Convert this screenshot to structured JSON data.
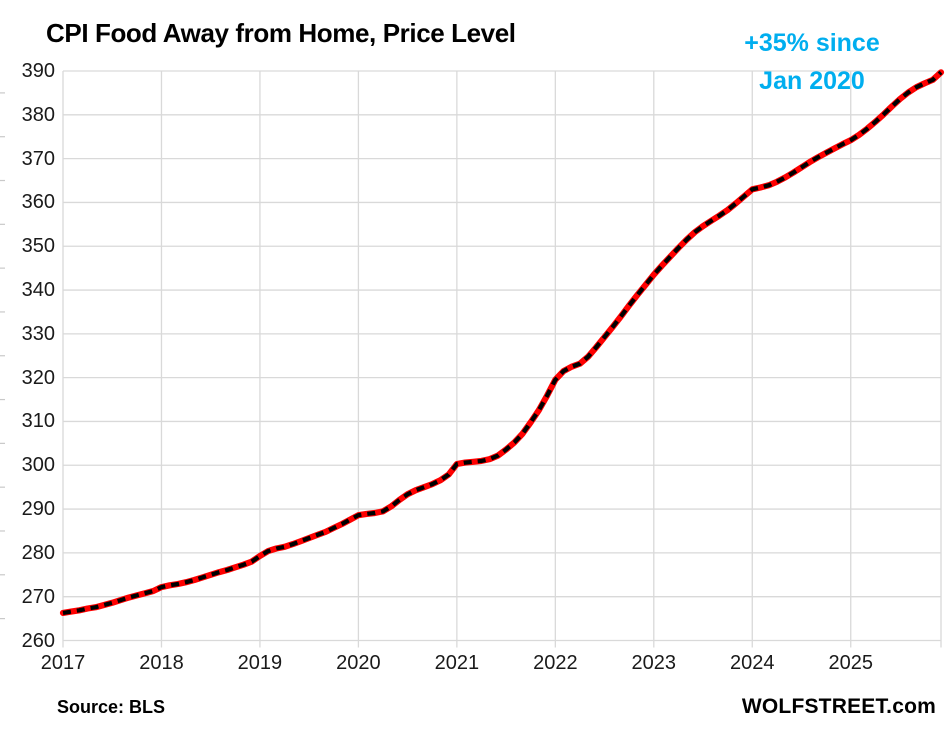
{
  "header": {
    "title": "CPI Food Away from Home, Price Level"
  },
  "annotation": {
    "line1": "+35% since",
    "line2": "Jan 2020",
    "color": "#00aeef"
  },
  "footer": {
    "source": "Source: BLS",
    "brand": "WOLFSTREET.com"
  },
  "colors": {
    "line_red": "#fe0000",
    "dash_black": "#000000",
    "grid": "#d9d9d9",
    "tick": "#c9c9c9",
    "axis_text": "#1a1a1a",
    "annotation_cyan": "#00aeef"
  },
  "chart_data": {
    "type": "line",
    "title": "CPI Food Away from Home, Price Level",
    "xlabel": "",
    "ylabel": "",
    "ylim": [
      260,
      390
    ],
    "ytick_step": 10,
    "grid": true,
    "legend_position": "none",
    "annotation": "+35% since Jan 2020",
    "x_tick_labels": [
      "2017",
      "2018",
      "2019",
      "2020",
      "2021",
      "2022",
      "2023",
      "2024",
      "2025"
    ],
    "y_tick_labels": [
      "390",
      "380",
      "370",
      "360",
      "350",
      "340",
      "330",
      "320",
      "310",
      "300",
      "290",
      "280",
      "270",
      "260"
    ],
    "series": [
      {
        "name": "CPI Food Away from Home price level index",
        "frequency": "monthly",
        "start": "2017-01",
        "end": "2025-12",
        "values": [
          266.3,
          266.6,
          266.9,
          267.3,
          267.6,
          268.1,
          268.6,
          269.2,
          269.8,
          270.3,
          270.8,
          271.3,
          272.2,
          272.6,
          272.9,
          273.3,
          273.8,
          274.4,
          275.0,
          275.6,
          276.1,
          276.7,
          277.3,
          278.0,
          279.3,
          280.4,
          281.0,
          281.4,
          282.0,
          282.7,
          283.4,
          284.1,
          284.8,
          285.7,
          286.6,
          287.6,
          288.6,
          288.9,
          289.1,
          289.5,
          290.6,
          292.1,
          293.4,
          294.3,
          295.0,
          295.7,
          296.6,
          297.9,
          300.3,
          300.6,
          300.8,
          301.0,
          301.4,
          302.2,
          303.6,
          305.2,
          307.2,
          309.8,
          312.6,
          315.9,
          319.5,
          321.5,
          322.5,
          323.2,
          324.8,
          327.0,
          329.3,
          331.6,
          334.0,
          336.5,
          338.9,
          341.2,
          343.5,
          345.6,
          347.6,
          349.6,
          351.5,
          353.2,
          354.6,
          355.8,
          357.0,
          358.3,
          359.8,
          361.4,
          363.0,
          363.4,
          363.9,
          364.7,
          365.7,
          366.8,
          368.0,
          369.2,
          370.3,
          371.3,
          372.3,
          373.3,
          374.2,
          375.4,
          376.8,
          378.4,
          380.1,
          381.9,
          383.6,
          385.1,
          386.3,
          387.2,
          388.0,
          389.7
        ]
      }
    ]
  }
}
